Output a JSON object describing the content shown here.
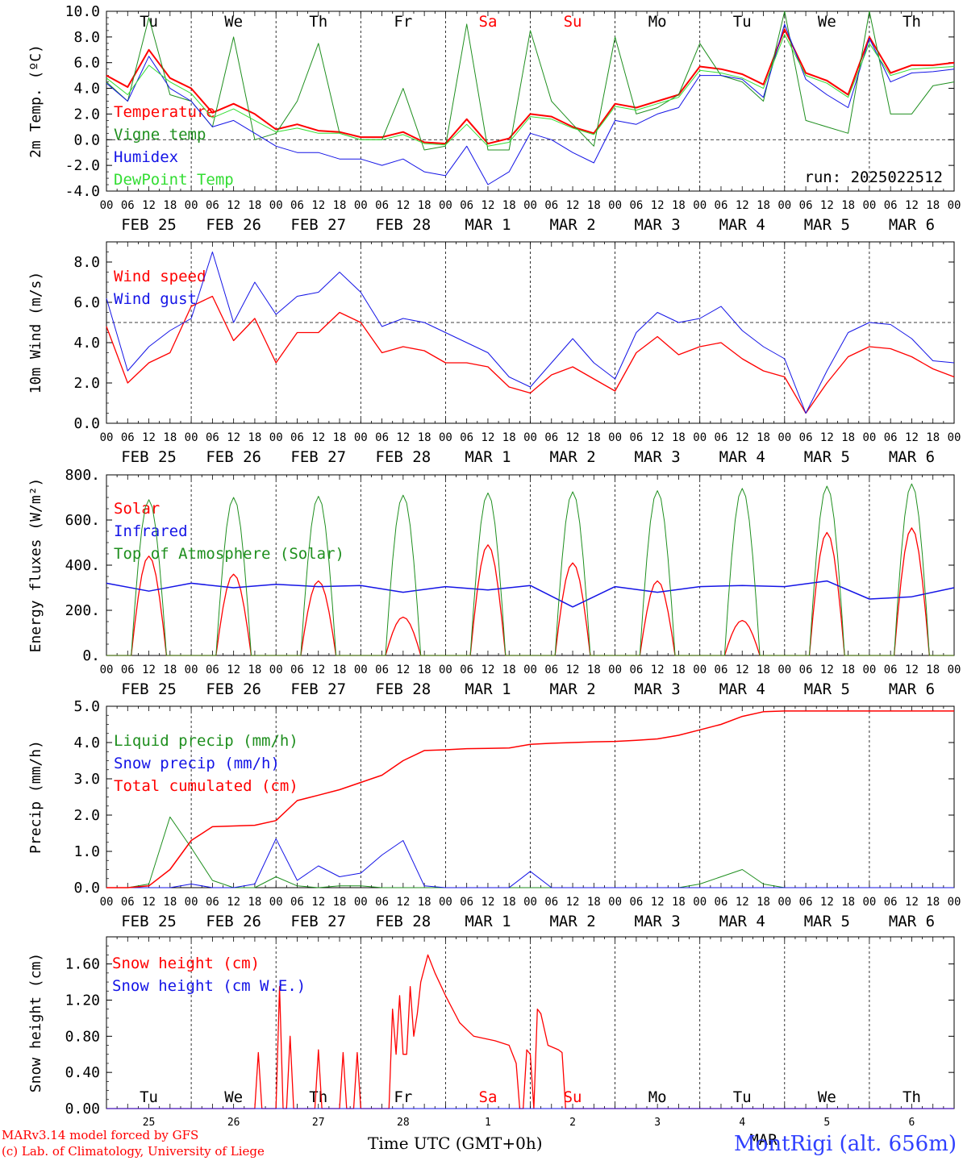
{
  "footer": {
    "credit_line_1": "MARv3.14 model forced by GFS",
    "credit_line_2": "(c) Lab. of Climatology, University of Liege",
    "station": "MontRigi (alt. 656m)",
    "x_axis_title": "Time UTC (GMT+0h)"
  },
  "colors": {
    "red": "#ff0000",
    "green": "#1f8f1f",
    "blue": "#1414e6",
    "lightgreen": "#33dd33",
    "weekend": "#ff0000",
    "text": "#000000"
  },
  "chart_data": [
    {
      "id": "temperature",
      "type": "line",
      "ylabel": "2m Temp. (ºC)",
      "ylim": [
        -4,
        10
      ],
      "yticks": [
        "-4.0",
        "-2.0",
        "0.0",
        "2.0",
        "4.0",
        "6.0",
        "8.0",
        "10.0"
      ],
      "ytick_values": [
        -4,
        -2,
        0,
        2,
        4,
        6,
        8,
        10
      ],
      "ref_line": 0,
      "weekdays": [
        "Tu",
        "We",
        "Th",
        "Fr",
        "Sa",
        "Su",
        "Mo",
        "Tu",
        "We",
        "Th"
      ],
      "weekend_days": [
        "Sa",
        "Su"
      ],
      "run_label": "run: 2025022512",
      "hour_ticks": [
        "00",
        "06",
        "12",
        "18"
      ],
      "date_labels": [
        "FEB 25",
        "FEB 26",
        "FEB 27",
        "FEB 28",
        "MAR  1",
        "MAR  2",
        "MAR  3",
        "MAR  4",
        "MAR  5",
        "MAR  6"
      ],
      "x_hours": [
        0,
        6,
        12,
        18,
        24,
        30,
        36,
        42,
        48,
        54,
        60,
        66,
        72,
        78,
        84,
        90,
        96,
        102,
        108,
        114,
        120,
        126,
        132,
        138,
        144,
        150,
        156,
        162,
        168,
        174,
        180,
        186,
        192,
        198,
        204,
        210,
        216,
        222,
        228,
        234,
        240
      ],
      "series": [
        {
          "name": "Temperature",
          "color": "#ff0000",
          "width": 2,
          "values": [
            5.0,
            4.1,
            7.0,
            4.8,
            4.0,
            2.1,
            2.8,
            2.0,
            0.8,
            1.2,
            0.7,
            0.6,
            0.2,
            0.2,
            0.6,
            -0.2,
            -0.3,
            1.6,
            -0.3,
            0.1,
            2.0,
            1.8,
            1.0,
            0.5,
            2.8,
            2.5,
            3.0,
            3.5,
            5.7,
            5.5,
            5.1,
            4.3,
            8.6,
            5.2,
            4.6,
            3.5,
            8.0,
            5.2,
            5.8,
            5.8,
            6.0
          ]
        },
        {
          "name": "Vigne temp",
          "color": "#1f8f1f",
          "width": 1,
          "values": [
            4.5,
            3.0,
            9.5,
            3.5,
            3.0,
            1.0,
            8.0,
            0.0,
            0.5,
            3.0,
            7.5,
            0.5,
            0.0,
            0.0,
            4.0,
            -0.8,
            -0.5,
            9.0,
            -0.8,
            -0.8,
            8.5,
            3.0,
            1.2,
            -0.5,
            8.0,
            2.0,
            2.5,
            3.5,
            7.5,
            5.0,
            4.5,
            3.0,
            10.5,
            1.5,
            1.0,
            0.5,
            10.0,
            2.0,
            2.0,
            4.2,
            4.5
          ]
        },
        {
          "name": "Humidex",
          "color": "#1414e6",
          "width": 1,
          "values": [
            4.4,
            3.0,
            6.5,
            4.0,
            3.0,
            1.0,
            1.5,
            0.5,
            -0.5,
            -1.0,
            -1.0,
            -1.5,
            -1.5,
            -2.0,
            -1.5,
            -2.5,
            -2.8,
            -0.5,
            -3.5,
            -2.5,
            0.5,
            0.0,
            -1.0,
            -1.8,
            1.5,
            1.2,
            2.0,
            2.5,
            5.0,
            5.0,
            4.7,
            3.3,
            9.0,
            4.7,
            3.5,
            2.5,
            7.9,
            4.5,
            5.2,
            5.3,
            5.5
          ]
        },
        {
          "name": "DewPoint Temp",
          "color": "#33dd33",
          "width": 1,
          "values": [
            4.8,
            3.5,
            5.8,
            4.5,
            3.6,
            1.7,
            2.4,
            1.5,
            0.6,
            0.9,
            0.5,
            0.5,
            0.0,
            0.0,
            0.4,
            -0.3,
            -0.4,
            1.2,
            -0.5,
            -0.2,
            1.8,
            1.6,
            0.9,
            0.4,
            2.6,
            2.3,
            2.8,
            3.3,
            5.4,
            5.2,
            4.8,
            4.0,
            8.2,
            5.0,
            4.4,
            3.3,
            7.5,
            5.0,
            5.5,
            5.6,
            5.7
          ]
        }
      ]
    },
    {
      "id": "wind",
      "type": "line",
      "ylabel": "10m Wind (m/s)",
      "ylim": [
        0,
        9
      ],
      "yticks": [
        "0.0",
        "2.0",
        "4.0",
        "6.0",
        "8.0"
      ],
      "ytick_values": [
        0,
        2,
        4,
        6,
        8
      ],
      "ref_line": 5,
      "hour_ticks": [
        "00",
        "06",
        "12",
        "18"
      ],
      "date_labels": [
        "FEB 25",
        "FEB 26",
        "FEB 27",
        "FEB 28",
        "MAR  1",
        "MAR  2",
        "MAR  3",
        "MAR  4",
        "MAR  5",
        "MAR  6"
      ],
      "x_hours": [
        0,
        6,
        12,
        18,
        24,
        30,
        36,
        42,
        48,
        54,
        60,
        66,
        72,
        78,
        84,
        90,
        96,
        102,
        108,
        114,
        120,
        126,
        132,
        138,
        144,
        150,
        156,
        162,
        168,
        174,
        180,
        186,
        192,
        198,
        204,
        210,
        216,
        222,
        228,
        234,
        240
      ],
      "series": [
        {
          "name": "Wind speed",
          "color": "#ff0000",
          "width": 1.3,
          "values": [
            4.8,
            2.0,
            3.0,
            3.5,
            5.8,
            6.3,
            4.1,
            5.2,
            3.0,
            4.5,
            4.5,
            5.5,
            5.0,
            3.5,
            3.8,
            3.6,
            3.0,
            3.0,
            2.8,
            1.8,
            1.5,
            2.4,
            2.8,
            2.2,
            1.6,
            3.5,
            4.3,
            3.4,
            3.8,
            4.0,
            3.2,
            2.6,
            2.3,
            0.5,
            2.0,
            3.3,
            3.8,
            3.7,
            3.3,
            2.7,
            2.3
          ]
        },
        {
          "name": "Wind gust",
          "color": "#1414e6",
          "width": 1,
          "values": [
            6.2,
            2.6,
            3.8,
            4.6,
            5.2,
            8.5,
            5.0,
            7.0,
            5.4,
            6.3,
            6.5,
            7.5,
            6.5,
            4.8,
            5.2,
            5.0,
            4.5,
            4.0,
            3.5,
            2.3,
            1.8,
            3.0,
            4.2,
            3.0,
            2.2,
            4.5,
            5.5,
            5.0,
            5.2,
            5.8,
            4.6,
            3.8,
            3.2,
            0.5,
            2.6,
            4.5,
            5.0,
            4.9,
            4.2,
            3.1,
            3.0
          ]
        }
      ]
    },
    {
      "id": "energy",
      "type": "line",
      "ylabel": "Energy fluxes (W/m²)",
      "ylim": [
        0,
        800
      ],
      "yticks": [
        "0.",
        "200.",
        "400.",
        "600.",
        "800."
      ],
      "ytick_values": [
        0,
        200,
        400,
        600,
        800
      ],
      "hour_ticks": [
        "00",
        "06",
        "12",
        "18"
      ],
      "date_labels": [
        "FEB 25",
        "FEB 26",
        "FEB 27",
        "FEB 28",
        "MAR  1",
        "MAR  2",
        "MAR  3",
        "MAR  4",
        "MAR  5",
        "MAR  6"
      ],
      "x_hours": [
        0,
        12,
        24,
        36,
        48,
        60,
        72,
        84,
        96,
        108,
        120,
        132,
        144,
        156,
        168,
        180,
        192,
        204,
        216,
        228,
        240
      ],
      "series": [
        {
          "name": "Solar",
          "color": "#ff0000",
          "width": 1.3,
          "diurnal_peaks": [
            440,
            360,
            330,
            170,
            490,
            410,
            330,
            155,
            545,
            565
          ]
        },
        {
          "name": "Infrared",
          "color": "#1414e6",
          "width": 1.5,
          "values": [
            320,
            285,
            320,
            300,
            315,
            305,
            310,
            280,
            305,
            290,
            310,
            215,
            305,
            280,
            305,
            310,
            305,
            330,
            250,
            260,
            300
          ]
        },
        {
          "name": "Top of Atmosphere (Solar)",
          "color": "#1f8f1f",
          "width": 1,
          "diurnal_peaks": [
            690,
            700,
            705,
            710,
            720,
            725,
            730,
            740,
            750,
            760
          ]
        }
      ]
    },
    {
      "id": "precip",
      "type": "line",
      "ylabel": "Precip (mm/h)",
      "ylim": [
        0,
        5
      ],
      "yticks": [
        "0.0",
        "1.0",
        "2.0",
        "3.0",
        "4.0",
        "5.0"
      ],
      "ytick_values": [
        0,
        1,
        2,
        3,
        4,
        5
      ],
      "hour_ticks": [
        "00",
        "06",
        "12",
        "18"
      ],
      "date_labels": [
        "FEB 25",
        "FEB 26",
        "FEB 27",
        "FEB 28",
        "MAR  1",
        "MAR  2",
        "MAR  3",
        "MAR  4",
        "MAR  5",
        "MAR  6"
      ],
      "x_hours": [
        0,
        6,
        12,
        18,
        24,
        30,
        36,
        42,
        48,
        54,
        60,
        66,
        72,
        78,
        84,
        90,
        96,
        102,
        108,
        114,
        120,
        126,
        132,
        138,
        144,
        150,
        156,
        162,
        168,
        174,
        180,
        186,
        192,
        198,
        204,
        210,
        216,
        222,
        228,
        234,
        240
      ],
      "series": [
        {
          "name": "Liquid precip (mm/h)",
          "color": "#1f8f1f",
          "width": 1,
          "values": [
            0,
            0,
            0.1,
            1.95,
            1.1,
            0.2,
            0,
            0,
            0.3,
            0.05,
            0,
            0.05,
            0.05,
            0,
            0,
            0,
            0,
            0,
            0,
            0,
            0,
            0,
            0,
            0,
            0,
            0,
            0,
            0,
            0.1,
            0.3,
            0.5,
            0.1,
            0,
            0,
            0,
            0,
            0,
            0,
            0,
            0,
            0
          ]
        },
        {
          "name": "Snow precip (mm/h)",
          "color": "#1414e6",
          "width": 1,
          "values": [
            0,
            0,
            0,
            0,
            0.1,
            0,
            0,
            0.1,
            1.35,
            0.2,
            0.6,
            0.3,
            0.4,
            0.9,
            1.3,
            0.05,
            0,
            0,
            0,
            0,
            0.45,
            0,
            0,
            0,
            0,
            0,
            0,
            0,
            0,
            0,
            0,
            0,
            0,
            0,
            0,
            0,
            0,
            0,
            0,
            0,
            0
          ]
        },
        {
          "name": "Total cumulated (cm)",
          "color": "#ff0000",
          "width": 1.5,
          "values": [
            0,
            0,
            0.05,
            0.5,
            1.3,
            1.68,
            1.7,
            1.72,
            1.85,
            2.4,
            2.55,
            2.7,
            2.9,
            3.1,
            3.5,
            3.78,
            3.8,
            3.83,
            3.84,
            3.85,
            3.95,
            3.98,
            4.0,
            4.02,
            4.03,
            4.06,
            4.1,
            4.2,
            4.35,
            4.5,
            4.72,
            4.85,
            4.87,
            4.87,
            4.87,
            4.87,
            4.87,
            4.87,
            4.87,
            4.87,
            4.87
          ]
        }
      ]
    },
    {
      "id": "snow",
      "type": "line",
      "ylabel": "Snow height (cm)",
      "ylim": [
        0,
        1.9
      ],
      "yticks": [
        "0.00",
        "0.40",
        "0.80",
        "1.20",
        "1.60"
      ],
      "ytick_values": [
        0,
        0.4,
        0.8,
        1.2,
        1.6
      ],
      "weekdays": [
        "Tu",
        "We",
        "Th",
        "Fr",
        "Sa",
        "Su",
        "Mo",
        "Tu",
        "We",
        "Th"
      ],
      "weekend_days": [
        "Sa",
        "Su"
      ],
      "day_numbers": [
        "25",
        "26",
        "27",
        "28",
        "1",
        "2",
        "3",
        "4",
        "5",
        "6"
      ],
      "month_label": "MAR",
      "series": [
        {
          "name": "Snow height (cm)",
          "color": "#ff0000",
          "width": 1.3,
          "points": [
            [
              0,
              0
            ],
            [
              42,
              0
            ],
            [
              43,
              0.62
            ],
            [
              44,
              0
            ],
            [
              48,
              0
            ],
            [
              49,
              1.35
            ],
            [
              50,
              0
            ],
            [
              51,
              0
            ],
            [
              52,
              0.8
            ],
            [
              53,
              0
            ],
            [
              59,
              0
            ],
            [
              60,
              0.65
            ],
            [
              61,
              0
            ],
            [
              66,
              0
            ],
            [
              67,
              0.62
            ],
            [
              68,
              0
            ],
            [
              70,
              0
            ],
            [
              71,
              0.62
            ],
            [
              72,
              0
            ],
            [
              80,
              0
            ],
            [
              81,
              1.1
            ],
            [
              82,
              0.6
            ],
            [
              83,
              1.25
            ],
            [
              84,
              0.6
            ],
            [
              85,
              0.6
            ],
            [
              86,
              1.35
            ],
            [
              87,
              0.8
            ],
            [
              88,
              1.05
            ],
            [
              89,
              1.4
            ],
            [
              90,
              1.55
            ],
            [
              91,
              1.7
            ],
            [
              93,
              1.5
            ],
            [
              96,
              1.25
            ],
            [
              100,
              0.95
            ],
            [
              104,
              0.8
            ],
            [
              110,
              0.75
            ],
            [
              114,
              0.7
            ],
            [
              116,
              0.5
            ],
            [
              117,
              0
            ],
            [
              118,
              0
            ],
            [
              119,
              0.65
            ],
            [
              120,
              0.6
            ],
            [
              121,
              0
            ],
            [
              122,
              1.1
            ],
            [
              123,
              1.05
            ],
            [
              125,
              0.7
            ],
            [
              128,
              0.65
            ],
            [
              129,
              0.62
            ],
            [
              130,
              0
            ],
            [
              240,
              0
            ]
          ]
        },
        {
          "name": "Snow height (cm W.E.)",
          "color": "#1414e6",
          "width": 1,
          "points": [
            [
              0,
              0
            ],
            [
              240,
              0
            ]
          ]
        }
      ]
    }
  ]
}
